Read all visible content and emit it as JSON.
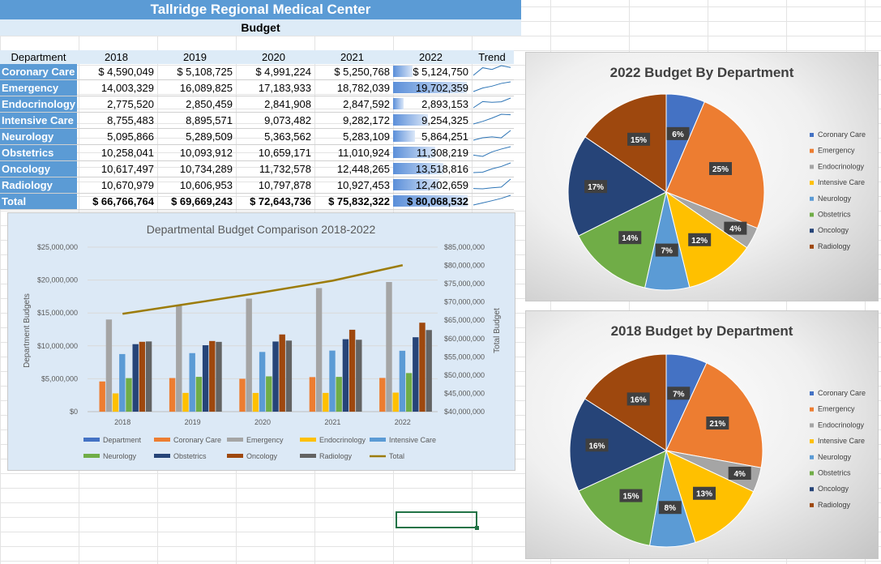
{
  "sheet": {
    "title": "Tallridge Regional Medical Center",
    "subtitle": "Budget",
    "headers": [
      "Department",
      "2018",
      "2019",
      "2020",
      "2021",
      "2022",
      "Trend"
    ],
    "rows": [
      {
        "dept": "Coronary Care",
        "v": [
          "$ 4,590,049",
          "$ 5,108,725",
          "$ 4,991,224",
          "$ 5,250,768",
          "$ 5,124,750"
        ]
      },
      {
        "dept": "Emergency",
        "v": [
          "14,003,329",
          "16,089,825",
          "17,183,933",
          "18,782,039",
          "19,702,359"
        ]
      },
      {
        "dept": "Endocrinology",
        "v": [
          "2,775,520",
          "2,850,459",
          "2,841,908",
          "2,847,592",
          "2,893,153"
        ]
      },
      {
        "dept": "Intensive Care",
        "v": [
          "8,755,483",
          "8,895,571",
          "9,073,482",
          "9,282,172",
          "9,254,325"
        ]
      },
      {
        "dept": "Neurology",
        "v": [
          "5,095,866",
          "5,289,509",
          "5,363,562",
          "5,283,109",
          "5,864,251"
        ]
      },
      {
        "dept": "Obstetrics",
        "v": [
          "10,258,041",
          "10,093,912",
          "10,659,171",
          "11,010,924",
          "11,308,219"
        ]
      },
      {
        "dept": "Oncology",
        "v": [
          "10,617,497",
          "10,734,289",
          "11,732,578",
          "12,448,265",
          "13,518,816"
        ]
      },
      {
        "dept": "Radiology",
        "v": [
          "10,670,979",
          "10,606,953",
          "10,797,878",
          "10,927,453",
          "12,402,659"
        ]
      },
      {
        "dept": "Total",
        "v": [
          "$ 66,766,764",
          "$ 69,669,243",
          "$ 72,643,736",
          "$ 75,832,322",
          "$ 80,068,532"
        ]
      }
    ]
  },
  "colors": {
    "Department": "#4472c4",
    "Coronary Care": "#ed7d31",
    "Emergency": "#a5a5a5",
    "Endocrinology": "#ffc000",
    "Intensive Care": "#5b9bd5",
    "Neurology": "#70ad47",
    "Obstetrics": "#264478",
    "Oncology": "#9e480e",
    "Radiology": "#636363",
    "Total": "#9c7c0a"
  },
  "pie_colors": [
    "#4472c4",
    "#ed7d31",
    "#a5a5a5",
    "#ffc000",
    "#5b9bd5",
    "#70ad47",
    "#264478",
    "#9e480e"
  ],
  "chart_data": [
    {
      "type": "bar",
      "title": "Departmental Budget Comparison 2018-2022",
      "ylabel": "Department Budgets",
      "y2label": "Total Budget",
      "categories": [
        "2018",
        "2019",
        "2020",
        "2021",
        "2022"
      ],
      "ylim": [
        0,
        25000000
      ],
      "yticks": [
        "$0",
        "$5,000,000",
        "$10,000,000",
        "$15,000,000",
        "$20,000,000",
        "$25,000,000"
      ],
      "y2lim": [
        40000000,
        85000000
      ],
      "y2ticks": [
        "$40,000,000",
        "$45,000,000",
        "$50,000,000",
        "$55,000,000",
        "$60,000,000",
        "$65,000,000",
        "$70,000,000",
        "$75,000,000",
        "$80,000,000",
        "$85,000,000"
      ],
      "series": [
        {
          "name": "Department",
          "values": [
            2018,
            2019,
            2020,
            2021,
            2022
          ]
        },
        {
          "name": "Coronary Care",
          "values": [
            4590049,
            5108725,
            4991224,
            5250768,
            5124750
          ]
        },
        {
          "name": "Emergency",
          "values": [
            14003329,
            16089825,
            17183933,
            18782039,
            19702359
          ]
        },
        {
          "name": "Endocrinology",
          "values": [
            2775520,
            2850459,
            2841908,
            2847592,
            2893153
          ]
        },
        {
          "name": "Intensive Care",
          "values": [
            8755483,
            8895571,
            9073482,
            9282172,
            9254325
          ]
        },
        {
          "name": "Neurology",
          "values": [
            5095866,
            5289509,
            5363562,
            5283109,
            5864251
          ]
        },
        {
          "name": "Obstetrics",
          "values": [
            10258041,
            10093912,
            10659171,
            11010924,
            11308219
          ]
        },
        {
          "name": "Oncology",
          "values": [
            10617497,
            10734289,
            11732578,
            12448265,
            13518816
          ]
        },
        {
          "name": "Radiology",
          "values": [
            10670979,
            10606953,
            10797878,
            10927453,
            12402659
          ]
        }
      ],
      "line_series": {
        "name": "Total",
        "axis": "secondary",
        "values": [
          66766764,
          69669243,
          72643736,
          75832322,
          80068532
        ]
      },
      "legend_position": "bottom",
      "legend": [
        "Department",
        "Coronary Care",
        "Emergency",
        "Endocrinology",
        "Intensive Care",
        "Neurology",
        "Obstetrics",
        "Oncology",
        "Radiology",
        "Total"
      ]
    },
    {
      "type": "pie",
      "title": "2022 Budget By Department",
      "labels": [
        "Coronary Care",
        "Emergency",
        "Endocrinology",
        "Intensive Care",
        "Neurology",
        "Obstetrics",
        "Oncology",
        "Radiology"
      ],
      "values": [
        5124750,
        19702359,
        2893153,
        9254325,
        5864251,
        11308219,
        13518816,
        12402659
      ],
      "data_labels": [
        "6%",
        "25%",
        "4%",
        "12%",
        "7%",
        "14%",
        "17%",
        "15%"
      ],
      "legend_position": "right"
    },
    {
      "type": "pie",
      "title": "2018 Budget by Department",
      "labels": [
        "Coronary Care",
        "Emergency",
        "Endocrinology",
        "Intensive Care",
        "Neurology",
        "Obstetrics",
        "Oncology",
        "Radiology"
      ],
      "values": [
        4590049,
        14003329,
        2775520,
        8755483,
        5095866,
        10258041,
        10617497,
        10670979
      ],
      "data_labels": [
        "7%",
        "21%",
        "4%",
        "13%",
        "8%",
        "15%",
        "16%",
        "16%"
      ],
      "legend_position": "right"
    }
  ]
}
